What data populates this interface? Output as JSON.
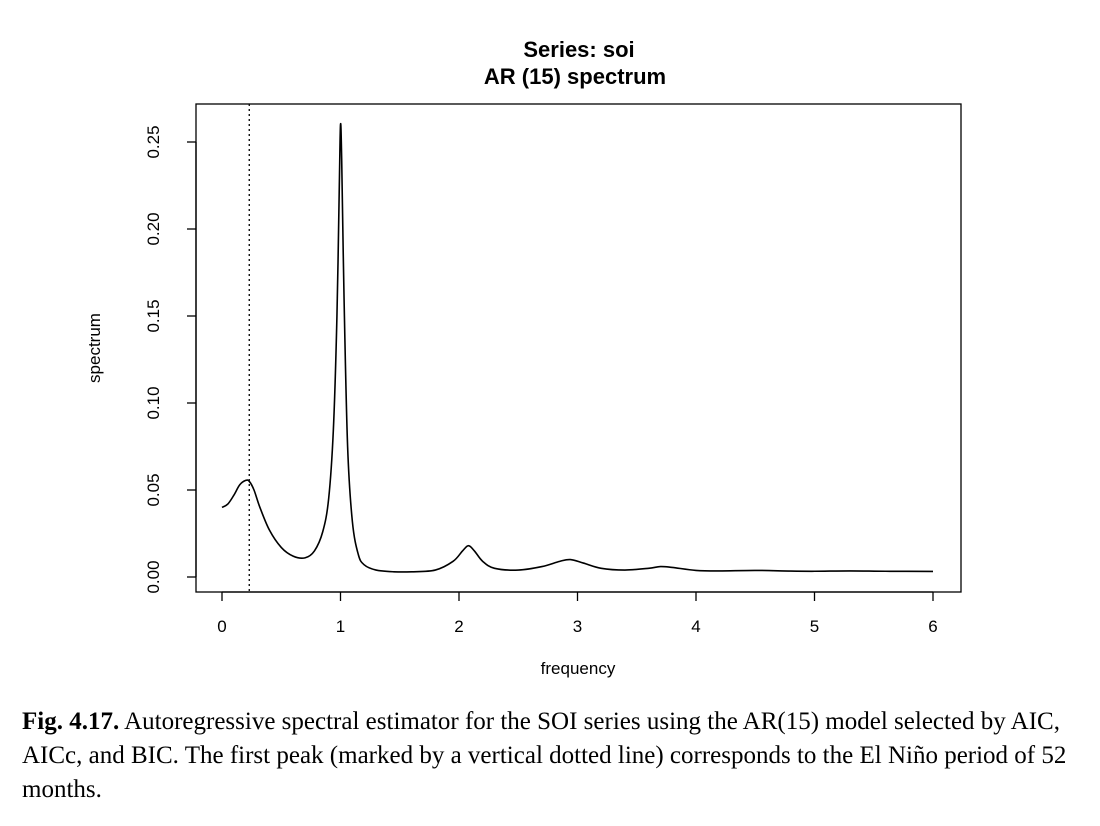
{
  "chart_data": {
    "type": "line",
    "title": "Series: soi",
    "subtitle": "AR (15) spectrum",
    "xlabel": "frequency",
    "ylabel": "spectrum",
    "xlim": [
      0,
      6
    ],
    "ylim": [
      0,
      0.26
    ],
    "x_ticks": [
      0,
      1,
      2,
      3,
      4,
      5,
      6
    ],
    "x_tick_labels": [
      "0",
      "1",
      "2",
      "3",
      "4",
      "5",
      "6"
    ],
    "y_ticks": [
      0,
      0.05,
      0.1,
      0.15,
      0.2,
      0.25
    ],
    "y_tick_labels": [
      "0.00",
      "0.05",
      "0.10",
      "0.15",
      "0.20",
      "0.25"
    ],
    "grid": false,
    "legend": "none",
    "vertical_marker": {
      "x": 0.23,
      "style": "dotted"
    },
    "series": [
      {
        "x": [
          0,
          0.05,
          0.1,
          0.15,
          0.2,
          0.23,
          0.27,
          0.32,
          0.4,
          0.5,
          0.6,
          0.7,
          0.78,
          0.85,
          0.9,
          0.94,
          0.97,
          0.99,
          1.0,
          1.01,
          1.03,
          1.06,
          1.1,
          1.15,
          1.2,
          1.3,
          1.45,
          1.6,
          1.8,
          1.95,
          2.03,
          2.08,
          2.13,
          2.2,
          2.3,
          2.5,
          2.7,
          2.85,
          2.94,
          3.05,
          3.2,
          3.4,
          3.6,
          3.7,
          3.8,
          4.0,
          4.2,
          4.5,
          4.8,
          5.0,
          5.3,
          5.6,
          6.0
        ],
        "y": [
          0.04,
          0.042,
          0.047,
          0.053,
          0.0555,
          0.055,
          0.05,
          0.04,
          0.027,
          0.017,
          0.012,
          0.011,
          0.015,
          0.026,
          0.045,
          0.085,
          0.15,
          0.225,
          0.26,
          0.24,
          0.16,
          0.075,
          0.032,
          0.013,
          0.007,
          0.004,
          0.003,
          0.003,
          0.004,
          0.009,
          0.015,
          0.018,
          0.015,
          0.009,
          0.005,
          0.004,
          0.006,
          0.009,
          0.01,
          0.008,
          0.005,
          0.004,
          0.005,
          0.006,
          0.0055,
          0.0038,
          0.0035,
          0.0038,
          0.0034,
          0.0033,
          0.0035,
          0.0033,
          0.0032
        ]
      }
    ]
  },
  "caption": {
    "label": "Fig. 4.17.",
    "text": " Autoregressive spectral estimator for the SOI series using the AR(15) model selected by AIC, AICc, and BIC. The first peak (marked by a vertical dotted line) corresponds to the El Niño period of 52 months."
  }
}
